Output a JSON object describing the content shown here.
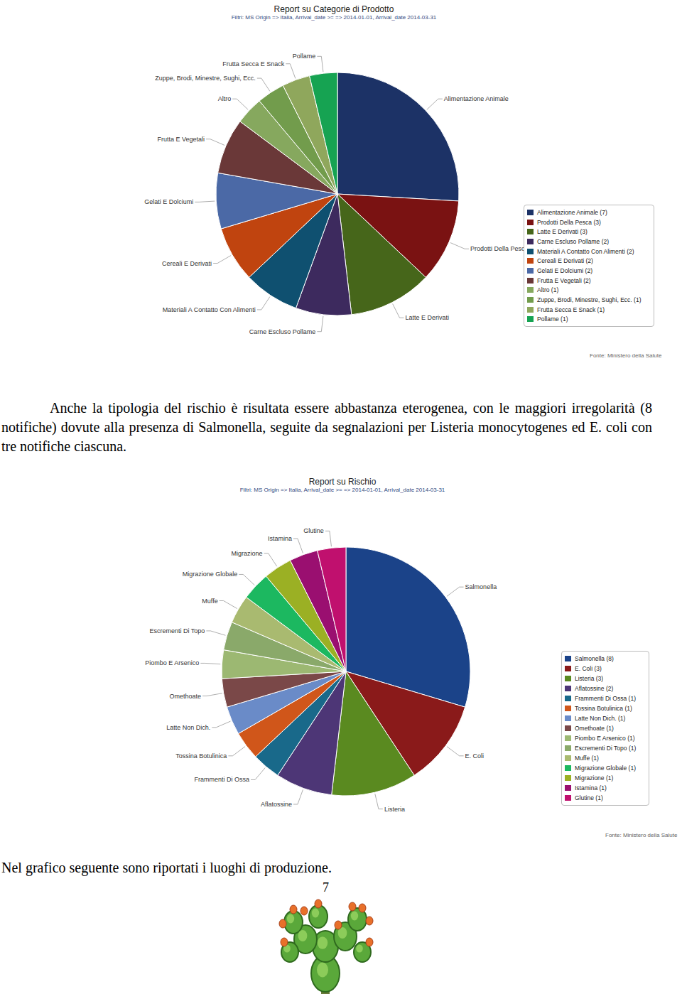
{
  "chart_data": [
    {
      "type": "pie",
      "title": "Report su Categorie di Prodotto",
      "subtitle": "Filtri: MS Origin => Italia, Arrival_date >= => 2014-01-01, Arrival_date 2014-03-31",
      "source": "Fonte: Ministero della Salute",
      "categories": [
        "Alimentazione Animale",
        "Prodotti Della Pesca",
        "Latte E Derivati",
        "Carne Escluso Pollame",
        "Materiali A Contatto Con Alimenti",
        "Cereali E Derivati",
        "Gelati E Dolciumi",
        "Frutta E Vegetali",
        "Altro",
        "Zuppe, Brodi, Minestre, Sughi, Ecc.",
        "Frutta Secca E Snack",
        "Pollame"
      ],
      "values": [
        7,
        3,
        3,
        2,
        2,
        2,
        2,
        2,
        1,
        1,
        1,
        1
      ],
      "colors": [
        "#1c3266",
        "#7a1212",
        "#46661a",
        "#3d2a5e",
        "#0f5070",
        "#c0440f",
        "#4b69a6",
        "#6a3838",
        "#86a85e",
        "#729c4c",
        "#8fa75c",
        "#16a352"
      ],
      "legend": "right"
    },
    {
      "type": "pie",
      "title": "Report su Rischio",
      "subtitle": "Filtri: MS Origin => Italia, Arrival_date >= => 2014-01-01, Arrival_date 2014-03-31",
      "source": "Fonte: Ministero della Salute",
      "categories": [
        "Salmonella",
        "E. Coli",
        "Listeria",
        "Aflatossine",
        "Frammenti Di Ossa",
        "Tossina Botulinica",
        "Latte Non Dich.",
        "Omethoate",
        "Piombo E Arsenico",
        "Escrementi Di Topo",
        "Muffe",
        "Migrazione Globale",
        "Migrazione",
        "Istamina",
        "Glutine"
      ],
      "values": [
        8,
        3,
        3,
        2,
        1,
        1,
        1,
        1,
        1,
        1,
        1,
        1,
        1,
        1,
        1
      ],
      "colors": [
        "#1b4389",
        "#8a1a1a",
        "#5a8a20",
        "#4d3676",
        "#19698a",
        "#d0561a",
        "#6a8bc8",
        "#7a4848",
        "#9cb872",
        "#8aa96a",
        "#a9ba70",
        "#1cb860",
        "#9bb024",
        "#9a0f70",
        "#c0106e"
      ],
      "legend": "right"
    }
  ],
  "document": {
    "paragraphs": [
      "Anche la tipologia del rischio è risultata essere abbastanza eterogenea, con le maggiori irregolarità (8 notifiche) dovute alla presenza di Salmonella, seguite da segnalazioni per Listeria monocytogenes ed E. coli con tre notifiche ciascuna.",
      "Nel grafico seguente sono riportati i luoghi di produzione."
    ],
    "page_number": 7
  }
}
